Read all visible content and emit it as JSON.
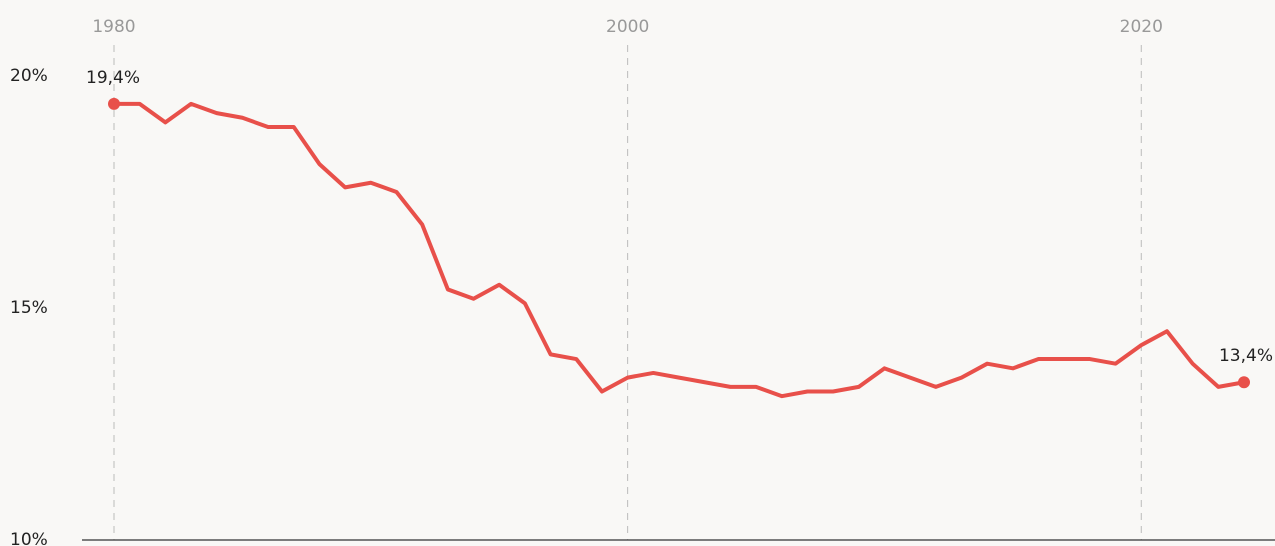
{
  "chart_data": {
    "type": "line",
    "x": [
      1980,
      1981,
      1982,
      1983,
      1984,
      1985,
      1986,
      1987,
      1988,
      1989,
      1990,
      1991,
      1992,
      1993,
      1994,
      1995,
      1996,
      1997,
      1998,
      1999,
      2000,
      2001,
      2002,
      2003,
      2004,
      2005,
      2006,
      2007,
      2008,
      2009,
      2010,
      2011,
      2012,
      2013,
      2014,
      2015,
      2016,
      2017,
      2018,
      2019,
      2020,
      2021,
      2022,
      2023,
      2024
    ],
    "series": [
      {
        "color": "#e8504a",
        "values": [
          19.4,
          19.4,
          19.0,
          19.4,
          19.2,
          19.1,
          18.9,
          18.9,
          18.1,
          17.6,
          17.7,
          17.5,
          16.8,
          15.4,
          15.2,
          15.5,
          15.1,
          14.0,
          13.9,
          13.2,
          13.5,
          13.6,
          13.5,
          13.4,
          13.3,
          13.3,
          13.1,
          13.2,
          13.2,
          13.3,
          13.7,
          13.5,
          13.3,
          13.5,
          13.8,
          13.7,
          13.9,
          13.9,
          13.9,
          13.8,
          14.2,
          14.5,
          13.8,
          13.3,
          13.4
        ],
        "value_labels": [
          "19,4%",
          null,
          null,
          null,
          null,
          null,
          null,
          null,
          null,
          null,
          null,
          null,
          null,
          null,
          null,
          null,
          null,
          null,
          null,
          null,
          null,
          null,
          null,
          null,
          null,
          null,
          null,
          null,
          null,
          null,
          null,
          null,
          null,
          null,
          null,
          null,
          null,
          null,
          null,
          null,
          null,
          null,
          null,
          null,
          "13,4%"
        ]
      }
    ],
    "xlim": [
      1980,
      2024
    ],
    "xticks": [
      1980,
      2000,
      2020
    ],
    "ylim": [
      10,
      20
    ],
    "yticks": [
      {
        "value": 10,
        "label": "10%"
      },
      {
        "value": 15,
        "label": "15%"
      },
      {
        "value": 20,
        "label": "20%"
      }
    ],
    "grid": true
  }
}
